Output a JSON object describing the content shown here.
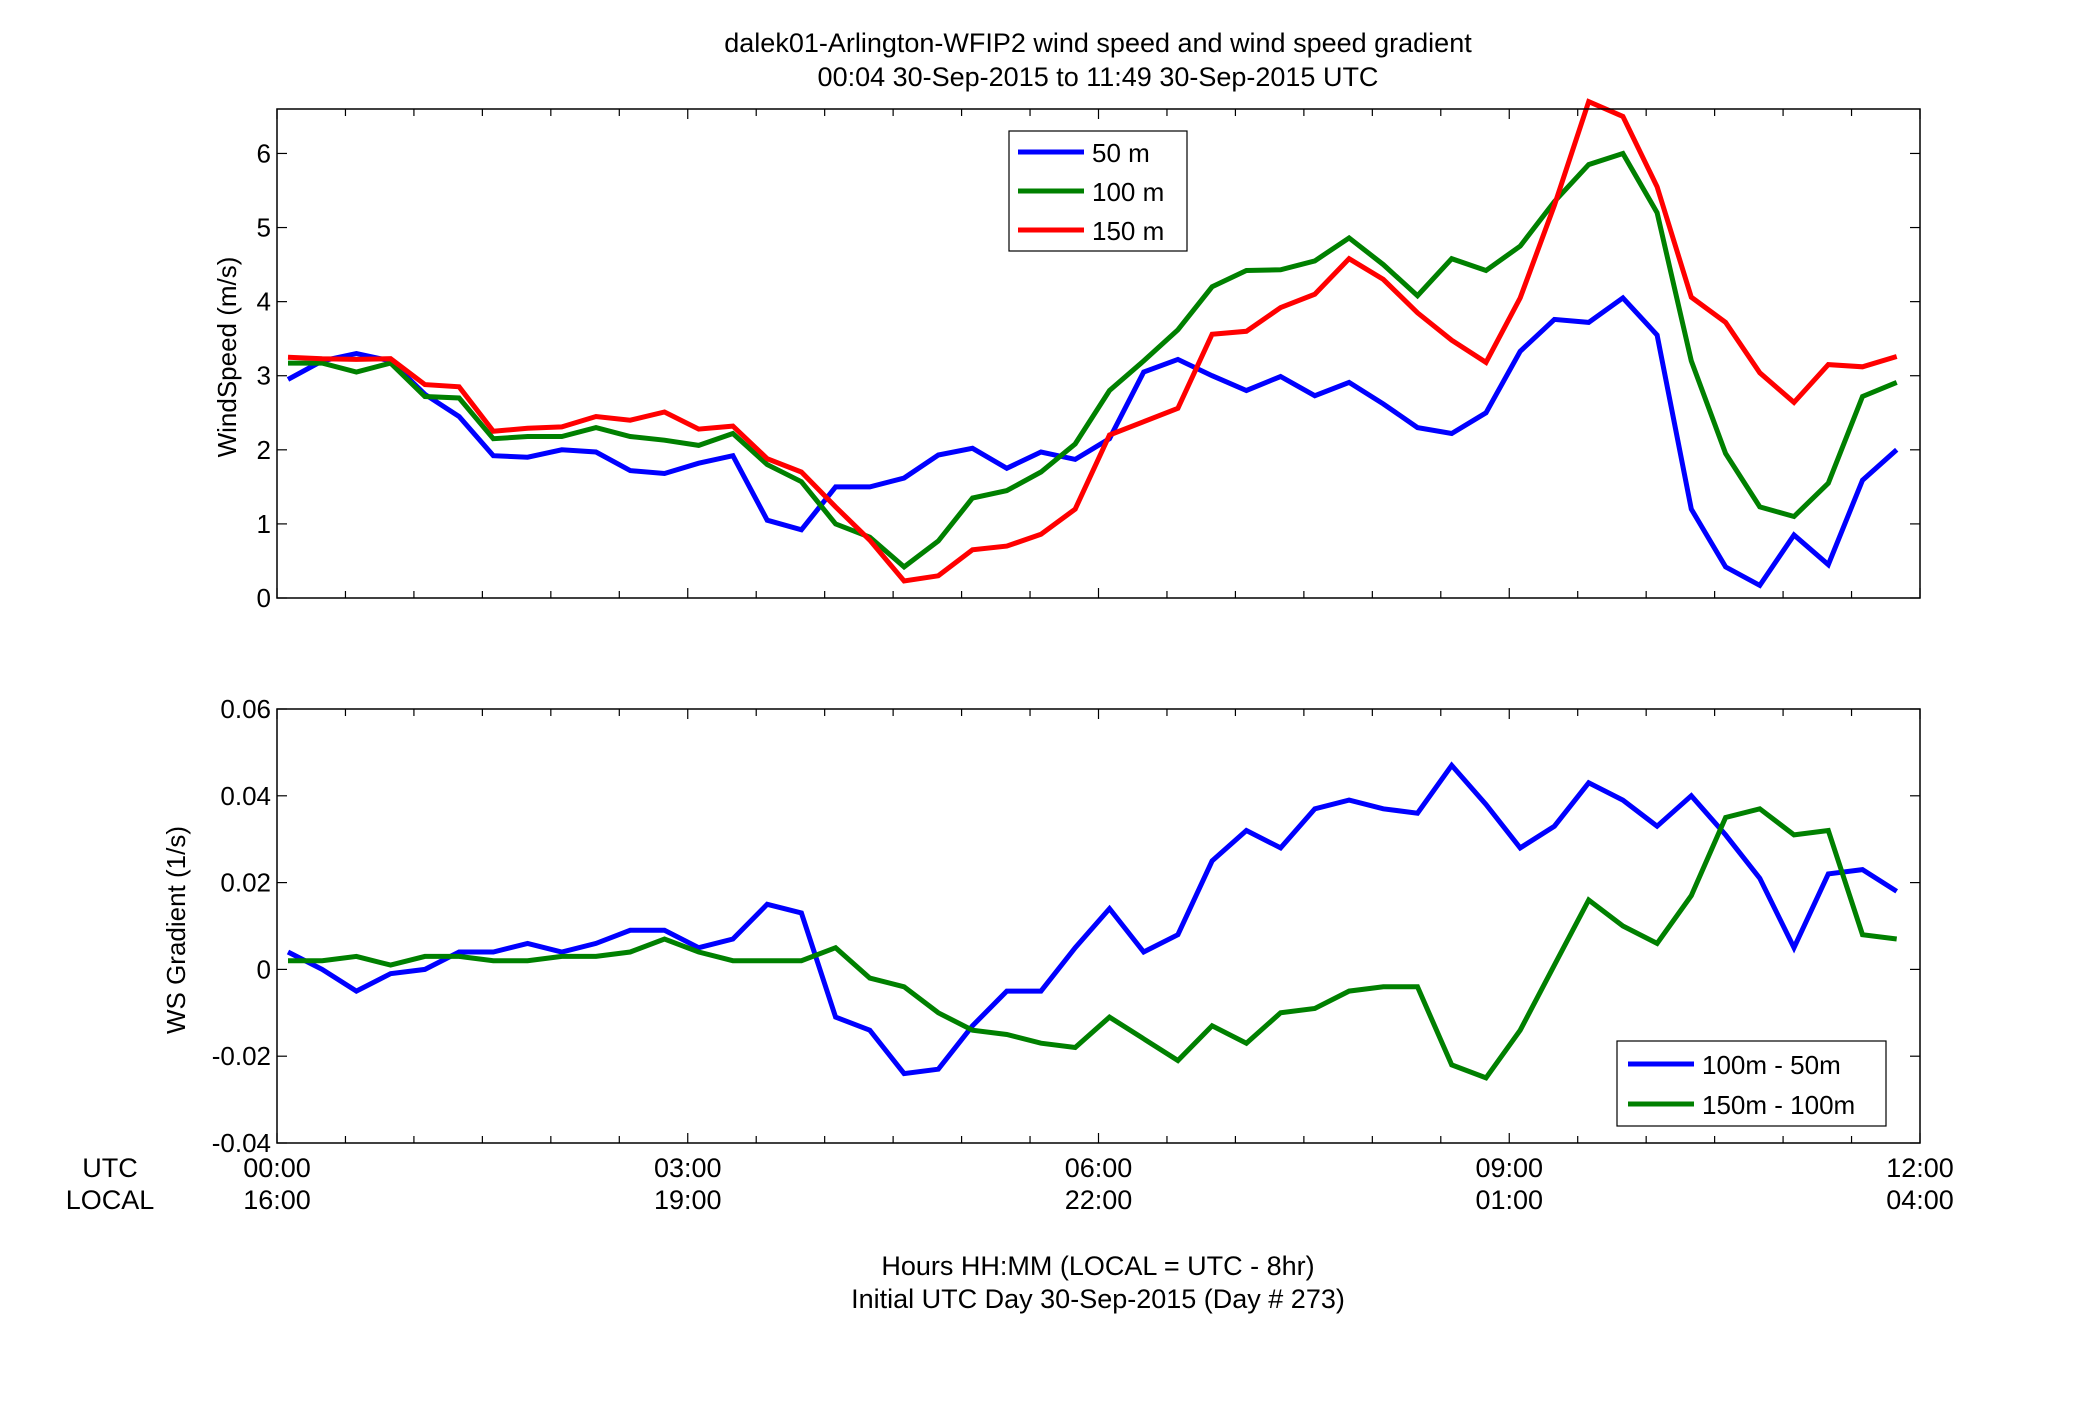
{
  "figure": {
    "title_line1": "dalek01-Arlington-WFIP2  wind speed and wind speed gradient",
    "title_line2": "00:04 30-Sep-2015 to 11:49 30-Sep-2015  UTC",
    "xlabel_line1": "Hours HH:MM  (LOCAL = UTC - 8hr)",
    "xlabel_line2": "Initial UTC Day 30-Sep-2015 (Day # 273)",
    "row_label_utc": "UTC",
    "row_label_local": "LOCAL",
    "utc_ticks": [
      "00:00",
      "03:00",
      "06:00",
      "09:00",
      "12:00"
    ],
    "local_ticks": [
      "16:00",
      "19:00",
      "22:00",
      "01:00",
      "04:00"
    ]
  },
  "chart_data": [
    {
      "type": "line",
      "title": "",
      "xlabel": "",
      "ylabel": "WindSpeed (m/s)",
      "xlim": [
        0,
        12
      ],
      "ylim": [
        0,
        6.6
      ],
      "yticks": [
        0,
        1,
        2,
        3,
        4,
        5,
        6
      ],
      "ytick_labels": [
        "0",
        "1",
        "2",
        "3",
        "4",
        "5",
        "6"
      ],
      "grid": false,
      "legend_position": "top-center",
      "x": [
        0.08,
        0.33,
        0.58,
        0.83,
        1.08,
        1.33,
        1.58,
        1.83,
        2.08,
        2.33,
        2.58,
        2.83,
        3.08,
        3.33,
        3.58,
        3.83,
        4.08,
        4.33,
        4.58,
        4.83,
        5.08,
        5.33,
        5.58,
        5.83,
        6.08,
        6.33,
        6.58,
        6.83,
        7.08,
        7.33,
        7.58,
        7.83,
        8.08,
        8.33,
        8.58,
        8.83,
        9.08,
        9.33,
        9.58,
        9.83,
        10.08,
        10.33,
        10.58,
        10.83,
        11.08,
        11.33,
        11.58,
        11.83
      ],
      "series": [
        {
          "name": "50 m",
          "color": "#0000ff",
          "values": [
            2.95,
            3.2,
            3.3,
            3.2,
            2.75,
            2.45,
            1.92,
            1.9,
            2.0,
            1.97,
            1.72,
            1.68,
            1.82,
            1.92,
            1.05,
            0.92,
            1.5,
            1.5,
            1.62,
            1.93,
            2.02,
            1.75,
            1.97,
            1.87,
            2.15,
            3.05,
            3.22,
            3.0,
            2.8,
            2.99,
            2.73,
            2.91,
            2.62,
            2.3,
            2.22,
            2.5,
            3.33,
            3.76,
            3.72,
            4.05,
            3.55,
            1.2,
            0.42,
            0.17,
            0.85,
            0.45,
            1.59,
            2.0
          ]
        },
        {
          "name": "100 m",
          "color": "#008000",
          "values": [
            3.17,
            3.17,
            3.05,
            3.17,
            2.72,
            2.7,
            2.15,
            2.18,
            2.18,
            2.3,
            2.18,
            2.13,
            2.06,
            2.22,
            1.8,
            1.57,
            1.0,
            0.82,
            0.42,
            0.77,
            1.35,
            1.45,
            1.7,
            2.08,
            2.8,
            3.2,
            3.62,
            4.2,
            4.42,
            4.43,
            4.55,
            4.86,
            4.5,
            4.08,
            4.58,
            4.42,
            4.75,
            5.35,
            5.85,
            6.0,
            5.2,
            3.2,
            1.95,
            1.23,
            1.1,
            1.55,
            2.72,
            2.91
          ]
        },
        {
          "name": "150 m",
          "color": "#ff0000",
          "values": [
            3.25,
            3.23,
            3.22,
            3.23,
            2.88,
            2.85,
            2.25,
            2.29,
            2.31,
            2.45,
            2.4,
            2.51,
            2.28,
            2.32,
            1.88,
            1.7,
            1.23,
            0.78,
            0.23,
            0.3,
            0.65,
            0.7,
            0.86,
            1.2,
            2.2,
            2.38,
            2.56,
            3.56,
            3.6,
            3.92,
            4.1,
            4.58,
            4.3,
            3.85,
            3.48,
            3.18,
            4.05,
            5.3,
            6.7,
            6.5,
            5.55,
            4.06,
            3.72,
            3.04,
            2.64,
            3.15,
            3.12,
            3.26
          ]
        }
      ]
    },
    {
      "type": "line",
      "title": "",
      "xlabel": "",
      "ylabel": "WS Gradient (1/s)",
      "xlim": [
        0,
        12
      ],
      "ylim": [
        -0.04,
        0.06
      ],
      "yticks": [
        -0.04,
        -0.02,
        0,
        0.02,
        0.04,
        0.06
      ],
      "ytick_labels": [
        "-0.04",
        "-0.02",
        "0",
        "0.02",
        "0.04",
        "0.06"
      ],
      "grid": false,
      "legend_position": "bottom-right",
      "x": [
        0.08,
        0.33,
        0.58,
        0.83,
        1.08,
        1.33,
        1.58,
        1.83,
        2.08,
        2.33,
        2.58,
        2.83,
        3.08,
        3.33,
        3.58,
        3.83,
        4.08,
        4.33,
        4.58,
        4.83,
        5.08,
        5.33,
        5.58,
        5.83,
        6.08,
        6.33,
        6.58,
        6.83,
        7.08,
        7.33,
        7.58,
        7.83,
        8.08,
        8.33,
        8.58,
        8.83,
        9.08,
        9.33,
        9.58,
        9.83,
        10.08,
        10.33,
        10.58,
        10.83,
        11.08,
        11.33,
        11.58,
        11.83
      ],
      "series": [
        {
          "name": "100m - 50m",
          "color": "#0000ff",
          "values": [
            0.004,
            0.0,
            -0.005,
            -0.001,
            0.0,
            0.004,
            0.004,
            0.006,
            0.004,
            0.006,
            0.009,
            0.009,
            0.005,
            0.007,
            0.015,
            0.013,
            -0.011,
            -0.014,
            -0.024,
            -0.023,
            -0.013,
            -0.005,
            -0.005,
            0.005,
            0.014,
            0.004,
            0.008,
            0.025,
            0.032,
            0.028,
            0.037,
            0.039,
            0.037,
            0.036,
            0.047,
            0.038,
            0.028,
            0.033,
            0.043,
            0.039,
            0.033,
            0.04,
            0.031,
            0.021,
            0.005,
            0.022,
            0.023,
            0.018
          ]
        },
        {
          "name": "150m - 100m",
          "color": "#008000",
          "values": [
            0.002,
            0.002,
            0.003,
            0.001,
            0.003,
            0.003,
            0.002,
            0.002,
            0.003,
            0.003,
            0.004,
            0.007,
            0.004,
            0.002,
            0.002,
            0.002,
            0.005,
            -0.002,
            -0.004,
            -0.01,
            -0.014,
            -0.015,
            -0.017,
            -0.018,
            -0.011,
            -0.016,
            -0.021,
            -0.013,
            -0.017,
            -0.01,
            -0.009,
            -0.005,
            -0.004,
            -0.004,
            -0.022,
            -0.025,
            -0.014,
            0.001,
            0.016,
            0.01,
            0.006,
            0.017,
            0.035,
            0.037,
            0.031,
            0.032,
            0.008,
            0.007
          ]
        }
      ]
    }
  ]
}
